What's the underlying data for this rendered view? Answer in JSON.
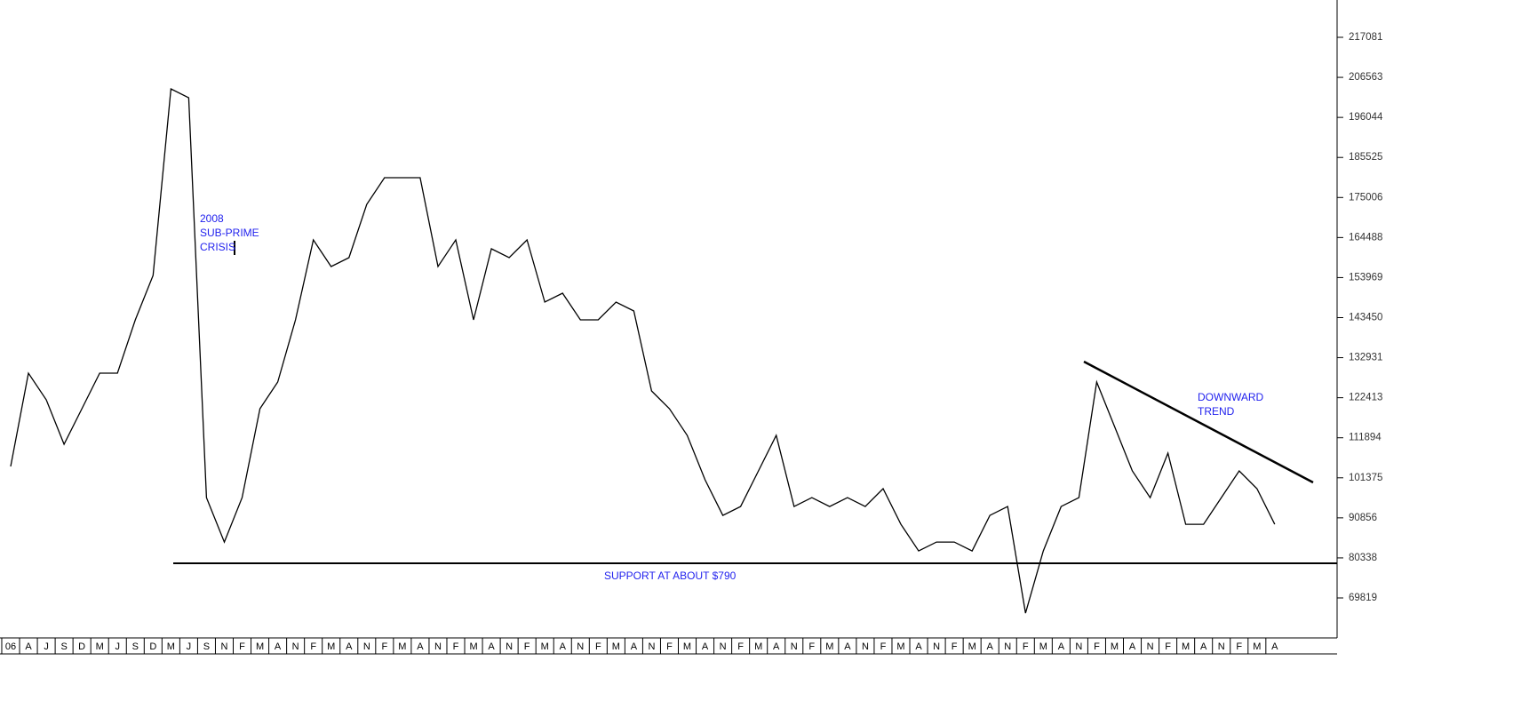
{
  "chart_data": {
    "type": "line",
    "categories": [
      "06",
      "A",
      "J",
      "S",
      "D",
      "M",
      "J",
      "S",
      "D",
      "M",
      "J",
      "S",
      "N",
      "F",
      "M",
      "A",
      "N",
      "F",
      "M",
      "A",
      "N",
      "F",
      "M",
      "A",
      "N",
      "F",
      "M",
      "A",
      "N",
      "F",
      "M",
      "A",
      "N",
      "F",
      "M",
      "A",
      "N",
      "F",
      "M",
      "A",
      "N",
      "F",
      "M",
      "A",
      "N",
      "F",
      "M",
      "A",
      "N",
      "F",
      "M",
      "A",
      "N",
      "F",
      "M",
      "A",
      "N",
      "F",
      "M",
      "A",
      "N",
      "F",
      "M",
      "A",
      "N",
      "F",
      "M",
      "A",
      "N",
      "F",
      "M",
      "A"
    ],
    "values": [
      104348,
      128855,
      121853,
      110183,
      119519,
      128855,
      128855,
      142859,
      154529,
      203543,
      201209,
      96179,
      84509,
      96179,
      119519,
      126521,
      142859,
      163877,
      156863,
      159197,
      173201,
      180203,
      180203,
      180203,
      156863,
      163877,
      142859,
      161531,
      159197,
      163877,
      147527,
      149861,
      142859,
      142859,
      147527,
      145193,
      124187,
      119519,
      112517,
      100847,
      91511,
      93845,
      103181,
      112517,
      93845,
      96179,
      93845,
      96179,
      93845,
      98513,
      89177,
      82175,
      84509,
      84509,
      82175,
      91511,
      93845,
      65837,
      82175,
      93845,
      96179,
      126521,
      114851,
      103181,
      96179,
      107849,
      89177,
      89177,
      96179,
      103181,
      98513,
      89177
    ],
    "color": "#000000",
    "ylim": [
      59317,
      226883
    ],
    "yticks": [
      69819,
      80338,
      90856,
      101375,
      111894,
      122413,
      132931,
      143450,
      153969,
      164488,
      175006,
      185525,
      196044,
      206563,
      217081
    ],
    "support_level": 78907,
    "annotations": [
      [
        "2008",
        "SUB-PRIME",
        "CRISIS"
      ],
      [
        "SUPPORT AT ABOUT $790"
      ],
      [
        "DOWNWARD",
        "TREND"
      ]
    ]
  }
}
